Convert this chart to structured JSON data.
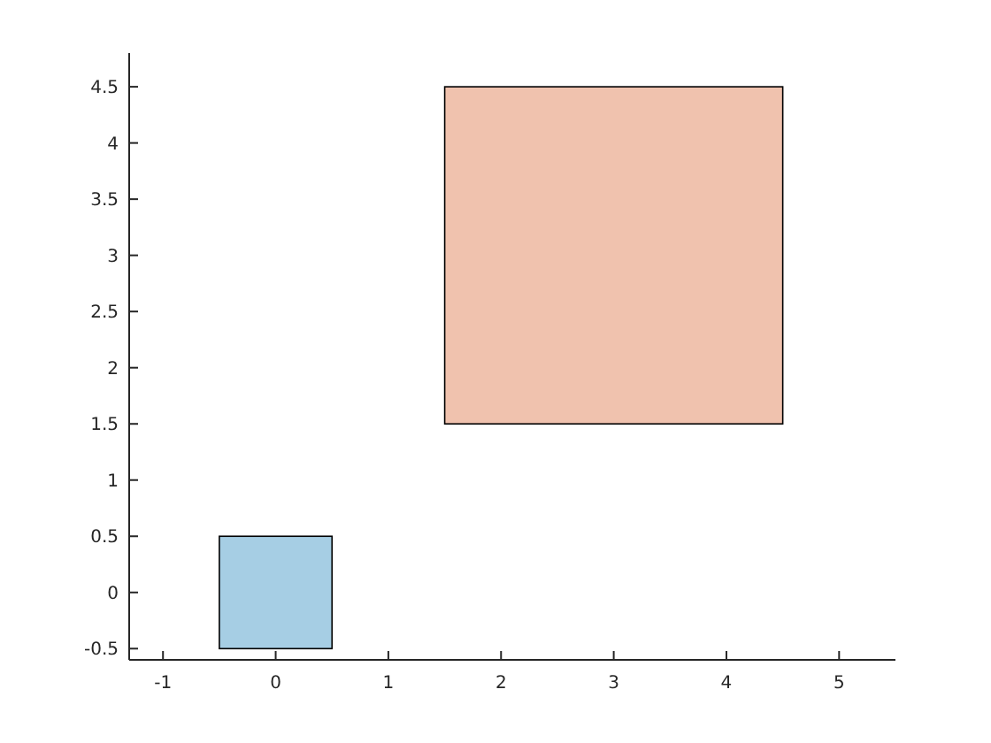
{
  "chart_data": {
    "type": "bar",
    "x": [
      0,
      3
    ],
    "base": [
      -0.5,
      1.5
    ],
    "values": [
      1,
      3
    ],
    "colors": [
      "#a6cee4",
      "#f0c2ae"
    ],
    "xlim": [
      -1.3,
      5.5
    ],
    "xticks": [
      -1,
      0,
      1,
      2,
      3,
      4,
      5
    ],
    "ylim": [
      -0.6,
      4.8
    ],
    "yticks": [
      -0.5,
      0,
      0.5,
      1,
      1.5,
      2,
      2.5,
      3,
      3.5,
      4,
      4.5
    ],
    "grid": false
  }
}
